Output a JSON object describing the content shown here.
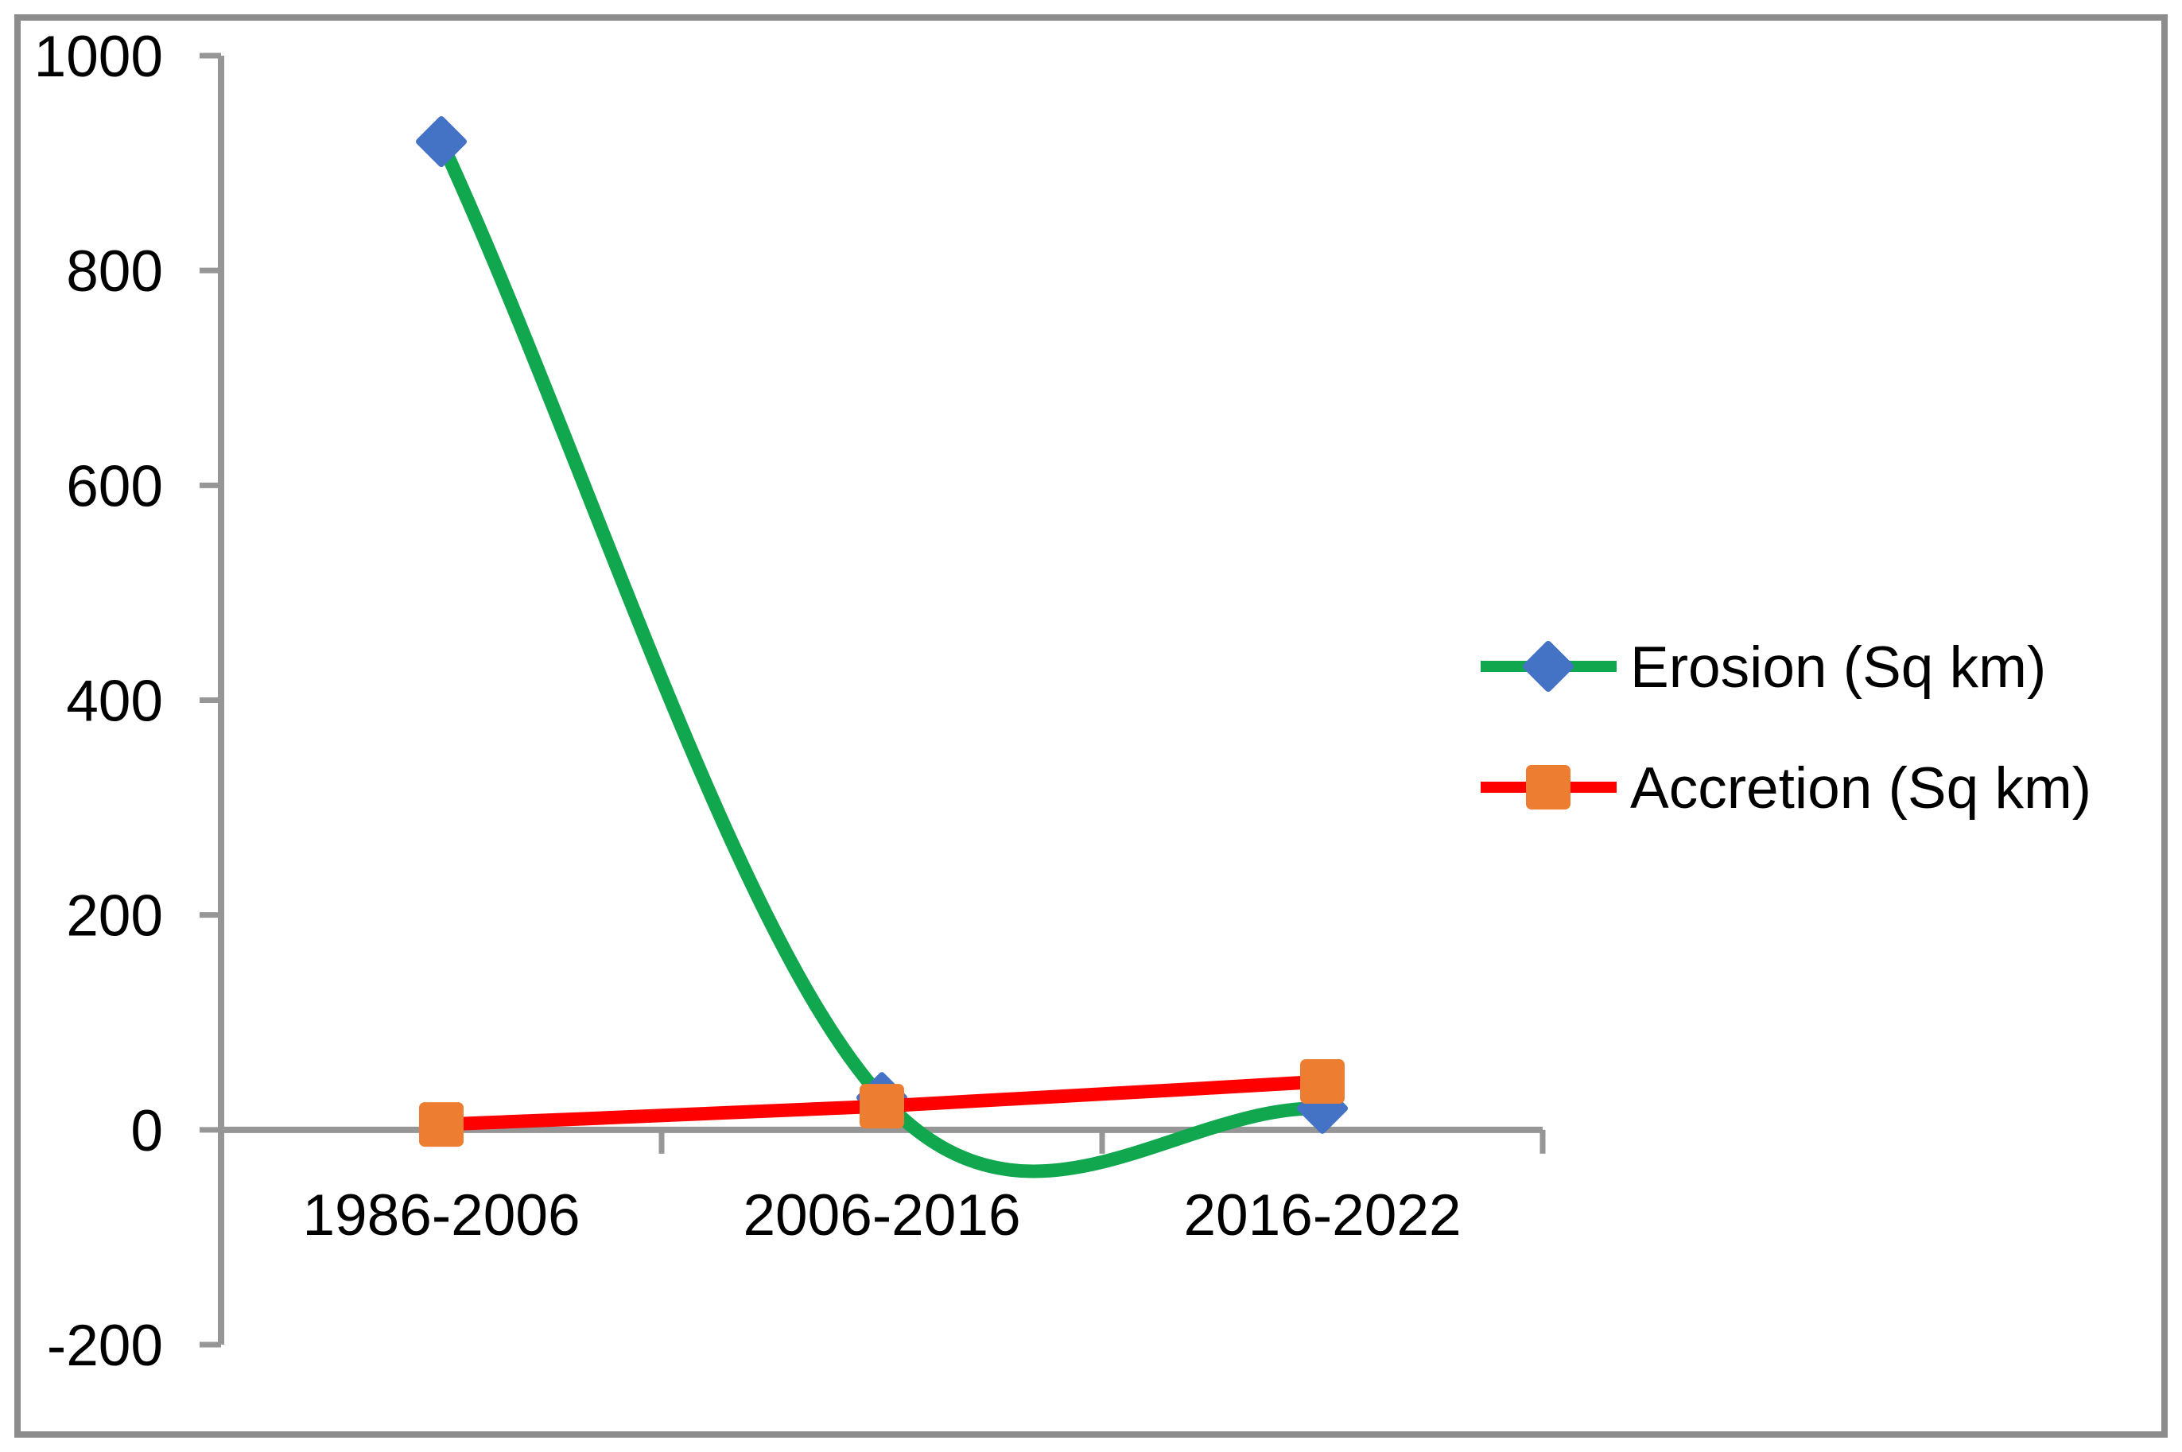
{
  "chart_data": {
    "type": "line",
    "title": "",
    "xlabel": "",
    "ylabel": "",
    "categories": [
      "1986-2006",
      "2006-2016",
      "2016-2022"
    ],
    "series": [
      {
        "name": "Erosion (Sq km)",
        "values": [
          920,
          30,
          20
        ],
        "line_color": "#10A74E",
        "marker_shape": "diamond",
        "marker_color": "#4472C4"
      },
      {
        "name": "Accretion (Sq km)",
        "values": [
          5,
          22,
          45
        ],
        "line_color": "#FF0000",
        "marker_shape": "square",
        "marker_color": "#ED7D31"
      }
    ],
    "ylim": [
      -200,
      1000
    ],
    "yticks": [
      1000,
      800,
      600,
      400,
      200,
      0,
      -200
    ],
    "grid": false,
    "smooth_lines": true,
    "legend_position": "center-right"
  },
  "colors": {
    "background": "#FFFFFF",
    "border": "#8C8C8C",
    "axis": "#969696",
    "text": "#000000"
  }
}
